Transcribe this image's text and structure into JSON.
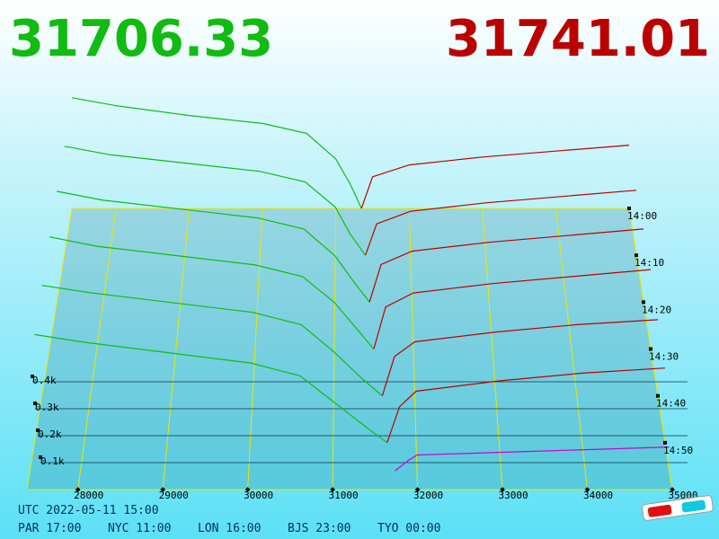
{
  "chart_data": {
    "type": "depth3d",
    "bid_price": 31706.33,
    "ask_price": 31741.01,
    "bid_color": "#11bb11",
    "ask_color": "#bb0000",
    "xlim": [
      27400,
      35000
    ],
    "xticks": [
      28000,
      29000,
      30000,
      31000,
      32000,
      33000,
      34000,
      35000
    ],
    "ylim": [
      0,
      600
    ],
    "yticks": [
      {
        "value": 100,
        "label": "0.1k"
      },
      {
        "value": 200,
        "label": "0.2k"
      },
      {
        "value": 300,
        "label": "0.3k"
      },
      {
        "value": 400,
        "label": "0.4k"
      }
    ],
    "zlim": [
      0,
      60
    ],
    "zticks": [
      {
        "value": 0,
        "label": "14:00"
      },
      {
        "value": 10,
        "label": "14:10"
      },
      {
        "value": 20,
        "label": "14:20"
      },
      {
        "value": 30,
        "label": "14:30"
      },
      {
        "value": 40,
        "label": "14:40"
      },
      {
        "value": 50,
        "label": "14:50"
      }
    ],
    "grid": true,
    "series": [
      {
        "z": 0,
        "color": "#11bb11",
        "x": [
          27400,
          28000,
          29000,
          30000,
          30600,
          31000,
          31200,
          31350
        ],
        "values": [
          560,
          520,
          470,
          430,
          380,
          250,
          120,
          0
        ]
      },
      {
        "z": 0,
        "color": "#bb0000",
        "x": [
          31350,
          31500,
          32000,
          33000,
          34000,
          35000
        ],
        "values": [
          0,
          160,
          220,
          260,
          290,
          320
        ]
      },
      {
        "z": 10,
        "color": "#11bb11",
        "x": [
          27400,
          28000,
          29000,
          30000,
          30600,
          31000,
          31200,
          31400
        ],
        "values": [
          520,
          480,
          440,
          400,
          350,
          230,
          100,
          0
        ]
      },
      {
        "z": 10,
        "color": "#bb0000",
        "x": [
          31400,
          31550,
          32000,
          33000,
          34000,
          35000
        ],
        "values": [
          0,
          150,
          210,
          250,
          280,
          310
        ]
      },
      {
        "z": 20,
        "color": "#11bb11",
        "x": [
          27400,
          28000,
          29000,
          30000,
          30600,
          31000,
          31250,
          31450
        ],
        "values": [
          500,
          460,
          420,
          380,
          330,
          210,
          90,
          0
        ]
      },
      {
        "z": 20,
        "color": "#bb0000",
        "x": [
          31450,
          31600,
          32000,
          33000,
          34000,
          35000
        ],
        "values": [
          0,
          170,
          230,
          270,
          300,
          330
        ]
      },
      {
        "z": 30,
        "color": "#11bb11",
        "x": [
          27400,
          28000,
          29000,
          30000,
          30600,
          31000,
          31300,
          31500
        ],
        "values": [
          480,
          440,
          400,
          360,
          310,
          200,
          80,
          0
        ]
      },
      {
        "z": 30,
        "color": "#bb0000",
        "x": [
          31500,
          31650,
          32000,
          33000,
          34000,
          35000
        ],
        "values": [
          0,
          180,
          240,
          280,
          310,
          340
        ]
      },
      {
        "z": 40,
        "color": "#11bb11",
        "x": [
          27400,
          28000,
          29000,
          30000,
          30600,
          31000,
          31350,
          31600
        ],
        "values": [
          450,
          420,
          380,
          340,
          290,
          180,
          70,
          0
        ]
      },
      {
        "z": 40,
        "color": "#bb0000",
        "x": [
          31600,
          31750,
          32000,
          33000,
          34000,
          35000
        ],
        "values": [
          0,
          160,
          220,
          260,
          290,
          310
        ]
      },
      {
        "z": 50,
        "color": "#11bb11",
        "x": [
          27400,
          28000,
          29000,
          30000,
          30600,
          31000,
          31400,
          31650
        ],
        "values": [
          420,
          390,
          350,
          310,
          260,
          160,
          60,
          0
        ]
      },
      {
        "z": 50,
        "color": "#bb0000",
        "x": [
          31650,
          31800,
          32000,
          33000,
          34000,
          35000
        ],
        "values": [
          0,
          140,
          200,
          240,
          270,
          290
        ]
      },
      {
        "z": 56,
        "color": "#cc00cc",
        "x": [
          31740,
          31900,
          32000,
          33000,
          34000,
          35000
        ],
        "values": [
          0,
          40,
          60,
          70,
          80,
          90
        ]
      }
    ]
  },
  "footer": {
    "utc": "UTC 2022-05-11 15:00",
    "zones": [
      "PAR 17:00",
      "NYC 11:00",
      "LON 16:00",
      "BJS 23:00",
      "TYO 00:00"
    ]
  }
}
